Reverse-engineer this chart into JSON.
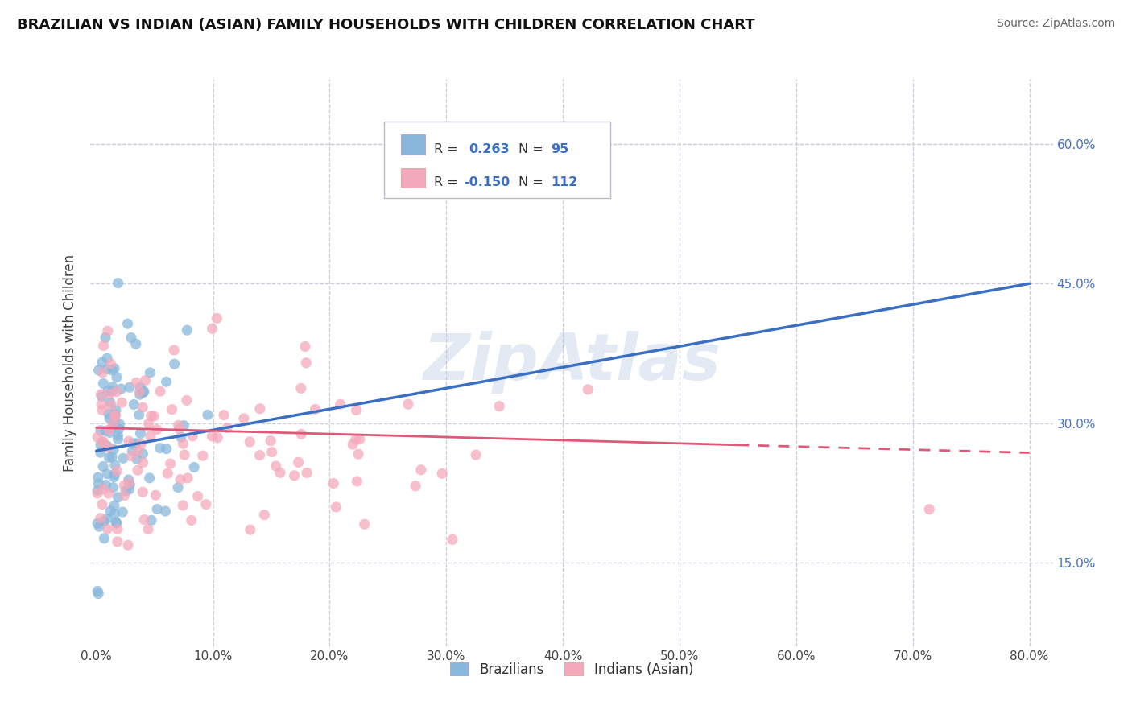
{
  "title": "BRAZILIAN VS INDIAN (ASIAN) FAMILY HOUSEHOLDS WITH CHILDREN CORRELATION CHART",
  "source": "Source: ZipAtlas.com",
  "ylabel": "Family Households with Children",
  "xlabel_ticks": [
    "0.0%",
    "10.0%",
    "20.0%",
    "30.0%",
    "40.0%",
    "50.0%",
    "60.0%",
    "70.0%",
    "80.0%"
  ],
  "xlabel_vals": [
    0.0,
    0.1,
    0.2,
    0.3,
    0.4,
    0.5,
    0.6,
    0.7,
    0.8
  ],
  "ylabel_ticks_right": [
    "15.0%",
    "30.0%",
    "45.0%",
    "60.0%"
  ],
  "ylabel_vals_right": [
    0.15,
    0.3,
    0.45,
    0.6
  ],
  "xlim": [
    -0.005,
    0.82
  ],
  "ylim": [
    0.06,
    0.67
  ],
  "blue_R": 0.263,
  "blue_N": 95,
  "pink_R": -0.15,
  "pink_N": 112,
  "blue_color": "#89b8dc",
  "pink_color": "#f5a8bb",
  "blue_line_color": "#3a6fc4",
  "pink_line_color": "#e05878",
  "legend_label_blue": "Brazilians",
  "legend_label_pink": "Indians (Asian)",
  "watermark": "ZipAtlas",
  "background_color": "#ffffff",
  "grid_color": "#ccccdd",
  "title_color": "#111111",
  "source_color": "#666666",
  "blue_line_x0": 0.0,
  "blue_line_y0": 0.27,
  "blue_line_x1": 0.8,
  "blue_line_y1": 0.45,
  "pink_line_x0": 0.0,
  "pink_line_y0": 0.295,
  "pink_line_x1": 0.8,
  "pink_line_y1": 0.268
}
